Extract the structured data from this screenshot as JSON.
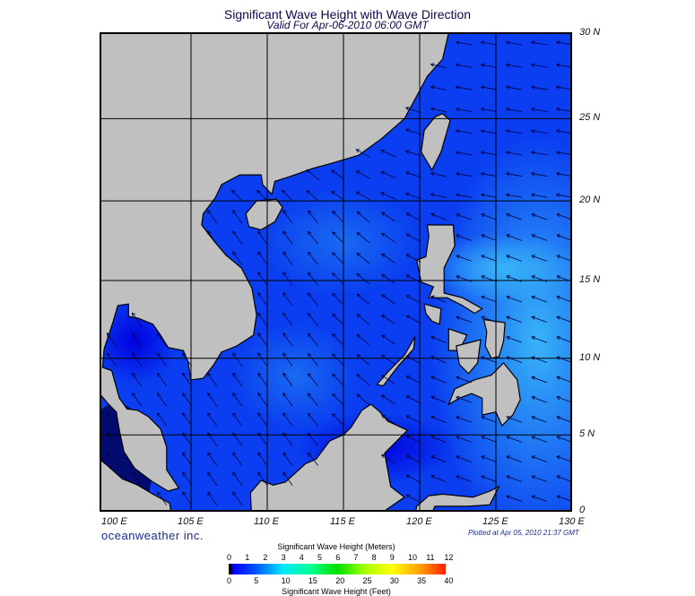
{
  "title": "Significant Wave Height with Wave Direction",
  "subtitle": "Valid For Apr-06-2010 06:00 GMT",
  "brand": "oceanweather inc.",
  "plotted": "Plotted at Apr 05, 2010 21:37 GMT",
  "lon_labels": [
    "100 E",
    "105 E",
    "110 E",
    "115 E",
    "120 E",
    "125 E",
    "130 E"
  ],
  "lat_labels": [
    "0",
    "5 N",
    "10 N",
    "15 N",
    "20 N",
    "25 N",
    "30 N"
  ],
  "colorbar": {
    "title_top": "Significant Wave Height (Meters)",
    "title_bottom": "Significant Wave Height (Feet)",
    "meters": [
      "0",
      "1",
      "2",
      "3",
      "4",
      "5",
      "6",
      "7",
      "8",
      "9",
      "10",
      "11",
      "12"
    ],
    "feet": [
      "0",
      "5",
      "10",
      "15",
      "20",
      "25",
      "30",
      "35",
      "40"
    ]
  },
  "chart_data": {
    "type": "heatmap",
    "projection": "mercator",
    "lon_range": [
      99,
      130
    ],
    "lat_range": [
      0,
      30
    ],
    "grid": true,
    "colors": {
      "land": "#c0c0c0",
      "sea_low": "#0000ff",
      "sea_mid": "#0a46f0",
      "sea_high": "#2aa8f5"
    },
    "wave_height_range_m": [
      0,
      1.5
    ]
  }
}
